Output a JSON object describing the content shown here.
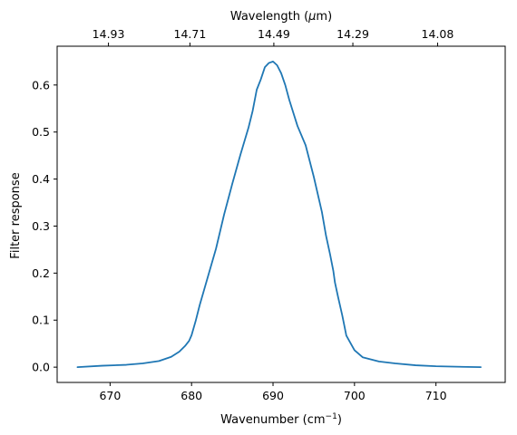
{
  "chart_data": {
    "type": "line",
    "xlabel": "Wavenumber (cm",
    "xlabel_sup": "−1",
    "xlabel_close": ")",
    "ylabel": "Filter response",
    "top_xlabel_prefix": "Wavelength (",
    "top_xlabel_mu": "μ",
    "top_xlabel_suffix": "m)",
    "xlim": [
      663.5,
      718.5
    ],
    "ylim": [
      -0.0325,
      0.6825
    ],
    "x_ticks": [
      670,
      680,
      690,
      700,
      710
    ],
    "x_tick_labels": [
      "670",
      "680",
      "690",
      "700",
      "710"
    ],
    "y_ticks": [
      0.0,
      0.1,
      0.2,
      0.3,
      0.4,
      0.5,
      0.6
    ],
    "y_tick_labels": [
      "0.0",
      "0.1",
      "0.2",
      "0.3",
      "0.4",
      "0.5",
      "0.6"
    ],
    "top_ticks_at_wavenumber": [
      669.8,
      679.8,
      690.1,
      699.8,
      710.2
    ],
    "top_tick_labels": [
      "14.93",
      "14.71",
      "14.49",
      "14.29",
      "14.08"
    ],
    "grid": false,
    "line_color": "#1f77b4",
    "series": [
      {
        "x": [
          666,
          669,
          672,
          674,
          676,
          677.5,
          678.5,
          679.2,
          679.7,
          680,
          680.5,
          681,
          682,
          683,
          684,
          685,
          686,
          687,
          687.5,
          688,
          688.5,
          689,
          689.5,
          690,
          690.5,
          691,
          691.5,
          692,
          693,
          694,
          695,
          696,
          696.5,
          697,
          697.4,
          697.6,
          698,
          698.5,
          699,
          700,
          701,
          703,
          705,
          707.5,
          710,
          712.5,
          715.5
        ],
        "y": [
          0.0,
          0.003,
          0.005,
          0.008,
          0.013,
          0.022,
          0.033,
          0.045,
          0.056,
          0.068,
          0.098,
          0.132,
          0.192,
          0.252,
          0.325,
          0.39,
          0.452,
          0.51,
          0.545,
          0.59,
          0.612,
          0.638,
          0.647,
          0.65,
          0.642,
          0.625,
          0.6,
          0.568,
          0.513,
          0.472,
          0.405,
          0.33,
          0.28,
          0.24,
          0.205,
          0.18,
          0.148,
          0.11,
          0.067,
          0.036,
          0.021,
          0.012,
          0.008,
          0.004,
          0.002,
          0.001,
          0.0
        ]
      }
    ]
  }
}
